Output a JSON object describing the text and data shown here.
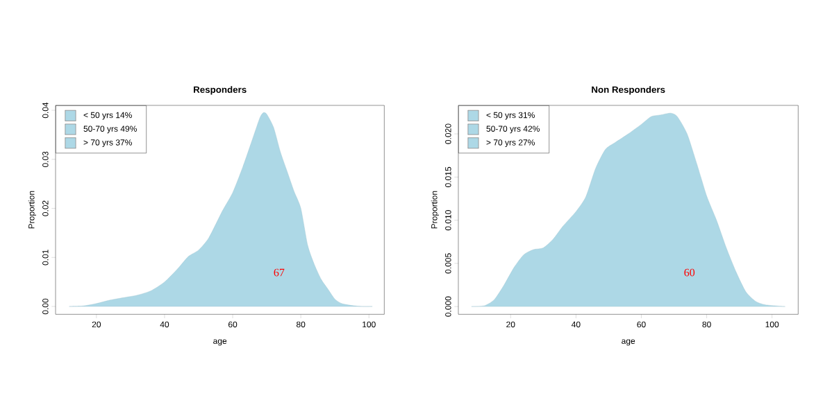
{
  "chart_data": [
    {
      "type": "area",
      "title": "Responders",
      "xlabel": "age",
      "ylabel": "Proportion",
      "color": "#add8e6",
      "x": [
        12,
        16,
        20,
        24,
        28,
        32,
        36,
        40,
        44,
        47,
        50,
        53,
        57,
        60,
        63,
        66,
        68,
        69,
        70,
        72,
        74,
        76,
        78,
        80,
        82,
        84,
        86,
        88,
        90,
        92,
        95,
        98,
        101
      ],
      "values": [
        0,
        0.0001,
        0.0006,
        0.0013,
        0.0018,
        0.0023,
        0.0032,
        0.005,
        0.0078,
        0.0102,
        0.0115,
        0.014,
        0.0195,
        0.0232,
        0.0285,
        0.0345,
        0.0385,
        0.0395,
        0.0392,
        0.0365,
        0.0315,
        0.0275,
        0.0235,
        0.02,
        0.0125,
        0.0085,
        0.0055,
        0.0035,
        0.0015,
        0.0006,
        0.0002,
        0,
        0
      ],
      "xlim": [
        8,
        104.5
      ],
      "xticks": [
        20,
        40,
        60,
        80,
        100
      ],
      "ylim": [
        -0.0016,
        0.041
      ],
      "yticks": [
        {
          "value": 0,
          "label": "0.00"
        },
        {
          "value": 0.01,
          "label": "0.01"
        },
        {
          "value": 0.02,
          "label": "0.02"
        },
        {
          "value": 0.03,
          "label": "0.03"
        },
        {
          "value": 0.04,
          "label": "0.04"
        }
      ],
      "annotations": [
        "< 50 yrs 14%",
        "50-70 yrs 49%",
        "> 70 yrs 37%",
        "67"
      ]
    },
    {
      "type": "area",
      "title": "Non Responders",
      "xlabel": "age",
      "ylabel": "Proportion",
      "color": "#add8e6",
      "x": [
        8,
        12,
        15,
        18,
        21,
        24,
        27,
        30,
        33,
        36,
        40,
        43,
        46,
        49,
        52,
        56,
        60,
        63,
        66,
        69,
        71,
        74,
        77,
        80,
        83,
        86,
        89,
        92,
        95,
        98,
        104
      ],
      "values": [
        0,
        0.0001,
        0.0008,
        0.0025,
        0.0045,
        0.006,
        0.0066,
        0.0068,
        0.0078,
        0.0093,
        0.011,
        0.0127,
        0.016,
        0.0182,
        0.019,
        0.02,
        0.0211,
        0.022,
        0.0222,
        0.0224,
        0.022,
        0.02,
        0.0165,
        0.0128,
        0.01,
        0.0068,
        0.004,
        0.0017,
        0.0006,
        0.0002,
        0
      ],
      "xlim": [
        4,
        108
      ],
      "xticks": [
        20,
        40,
        60,
        80,
        100
      ],
      "ylim": [
        -0.0009,
        0.0233
      ],
      "yticks": [
        {
          "value": 0,
          "label": "0.000"
        },
        {
          "value": 0.005,
          "label": "0.005"
        },
        {
          "value": 0.01,
          "label": "0.010"
        },
        {
          "value": 0.015,
          "label": "0.015"
        },
        {
          "value": 0.02,
          "label": "0.020"
        }
      ],
      "annotations": [
        "< 50 yrs 31%",
        "50-70 yrs 42%",
        "> 70 yrs 27%",
        "60"
      ]
    }
  ]
}
